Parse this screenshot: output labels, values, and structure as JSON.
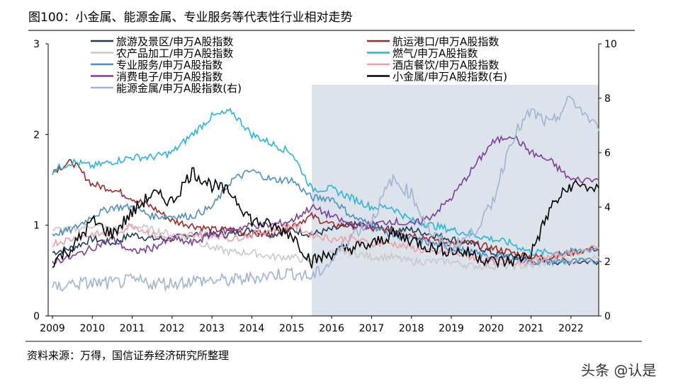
{
  "title": "图100：小金属、能源金属、专业服务等代表性行业相对走势",
  "source": "资料来源：万得，国信证券经济研究所整理",
  "watermark": "头条 @认是",
  "chart_data": {
    "type": "line",
    "title": "",
    "x_ticks": [
      "2009",
      "2010",
      "2011",
      "2012",
      "2013",
      "2014",
      "2015",
      "2016",
      "2017",
      "2018",
      "2019",
      "2020",
      "2021",
      "2022"
    ],
    "x": [
      2009,
      2009.5,
      2010,
      2010.5,
      2011,
      2011.5,
      2012,
      2012.5,
      2013,
      2013.5,
      2014,
      2014.5,
      2015,
      2015.5,
      2016,
      2016.5,
      2017,
      2017.5,
      2018,
      2018.5,
      2019,
      2019.5,
      2020,
      2020.5,
      2021,
      2021.5,
      2022,
      2022.7
    ],
    "y_left": {
      "lim": [
        0,
        3
      ],
      "ticks": [
        "0",
        "1",
        "2",
        "3"
      ]
    },
    "y_right": {
      "lim": [
        0,
        10
      ],
      "ticks": [
        "0",
        "2",
        "4",
        "6",
        "8",
        "10"
      ]
    },
    "shaded_from": 2015.5,
    "shaded_color": "#dde3ea",
    "legend_placement": "top",
    "series": [
      {
        "name": "旅游及景区/申万A股指数",
        "axis": "left",
        "color": "#1f3b57",
        "values": [
          0.7,
          0.75,
          0.85,
          0.8,
          0.9,
          0.85,
          0.85,
          0.9,
          0.9,
          0.9,
          0.95,
          0.9,
          0.95,
          0.9,
          0.95,
          1.0,
          1.0,
          0.95,
          0.95,
          0.9,
          0.85,
          0.8,
          0.7,
          0.65,
          0.6,
          0.6,
          0.6,
          0.6
        ]
      },
      {
        "name": "航运港口/申万A股指数",
        "axis": "left",
        "color": "#9b2a2a",
        "values": [
          1.6,
          1.7,
          1.45,
          1.4,
          1.3,
          1.2,
          1.05,
          1.0,
          0.95,
          0.95,
          0.9,
          0.9,
          1.0,
          1.1,
          1.0,
          1.0,
          0.95,
          0.95,
          0.9,
          0.85,
          0.8,
          0.8,
          0.75,
          0.7,
          0.65,
          0.65,
          0.7,
          0.75
        ]
      },
      {
        "name": "农产品加工/申万A股指数",
        "axis": "left",
        "color": "#c8c8c8",
        "values": [
          0.95,
          0.95,
          1.0,
          0.95,
          1.0,
          0.95,
          0.9,
          0.85,
          0.75,
          0.7,
          0.7,
          0.65,
          0.65,
          0.6,
          0.7,
          0.7,
          0.65,
          0.65,
          0.6,
          0.6,
          0.6,
          0.55,
          0.55,
          0.55,
          0.55,
          0.6,
          0.6,
          0.65
        ]
      },
      {
        "name": "燃气/申万A股指数",
        "axis": "left",
        "color": "#27b6d8",
        "values": [
          1.6,
          1.7,
          1.65,
          1.7,
          1.75,
          1.75,
          1.8,
          2.0,
          2.2,
          2.25,
          2.0,
          1.9,
          1.8,
          1.4,
          1.4,
          1.3,
          1.2,
          1.2,
          1.05,
          1.0,
          0.95,
          0.9,
          0.85,
          0.8,
          0.7,
          0.7,
          0.7,
          0.75
        ]
      },
      {
        "name": "专业服务/申万A股指数",
        "axis": "left",
        "color": "#4f8fc0",
        "values": [
          0.9,
          0.95,
          1.1,
          1.2,
          1.2,
          1.1,
          1.1,
          1.1,
          1.2,
          1.5,
          1.6,
          1.5,
          1.5,
          1.3,
          1.3,
          1.1,
          1.0,
          0.9,
          0.85,
          0.8,
          0.75,
          0.7,
          0.65,
          0.65,
          0.6,
          0.6,
          0.6,
          0.6
        ]
      },
      {
        "name": "酒店餐饮/申万A股指数",
        "axis": "left",
        "color": "#e8a0aa",
        "values": [
          0.8,
          0.85,
          0.9,
          0.9,
          1.0,
          0.9,
          0.85,
          0.9,
          0.9,
          0.85,
          0.9,
          0.95,
          1.0,
          0.9,
          0.85,
          0.85,
          0.8,
          0.8,
          0.75,
          0.7,
          0.7,
          0.65,
          0.6,
          0.6,
          0.6,
          0.65,
          0.7,
          0.75
        ]
      },
      {
        "name": "消费电子/申万A股指数",
        "axis": "left",
        "color": "#7a3f9a",
        "values": [
          0.6,
          0.65,
          0.75,
          0.85,
          0.7,
          0.75,
          0.85,
          0.8,
          0.9,
          0.95,
          1.0,
          1.0,
          1.05,
          1.2,
          1.1,
          1.0,
          1.0,
          1.05,
          1.0,
          1.1,
          1.3,
          1.6,
          1.9,
          2.0,
          1.8,
          1.7,
          1.5,
          1.5
        ]
      },
      {
        "name": "小金属/申万A股指数(右)",
        "axis": "right",
        "color": "#000000",
        "values": [
          2.0,
          2.5,
          3.5,
          3.0,
          3.8,
          4.5,
          4.2,
          5.3,
          4.8,
          4.5,
          3.5,
          3.3,
          3.0,
          2.0,
          2.3,
          2.5,
          2.6,
          3.0,
          2.8,
          2.5,
          2.4,
          2.3,
          2.0,
          2.0,
          2.3,
          4.0,
          4.8,
          4.7
        ]
      },
      {
        "name": "能源金属/申万A股指数(右)",
        "axis": "right",
        "color": "#9fb4d0",
        "values": [
          1.0,
          1.2,
          1.2,
          1.2,
          1.3,
          1.2,
          1.2,
          1.3,
          1.3,
          1.3,
          1.4,
          1.5,
          1.6,
          1.4,
          2.0,
          3.0,
          3.5,
          5.0,
          4.5,
          3.0,
          2.5,
          3.0,
          4.0,
          6.5,
          7.5,
          7.0,
          8.0,
          6.8
        ]
      }
    ]
  }
}
